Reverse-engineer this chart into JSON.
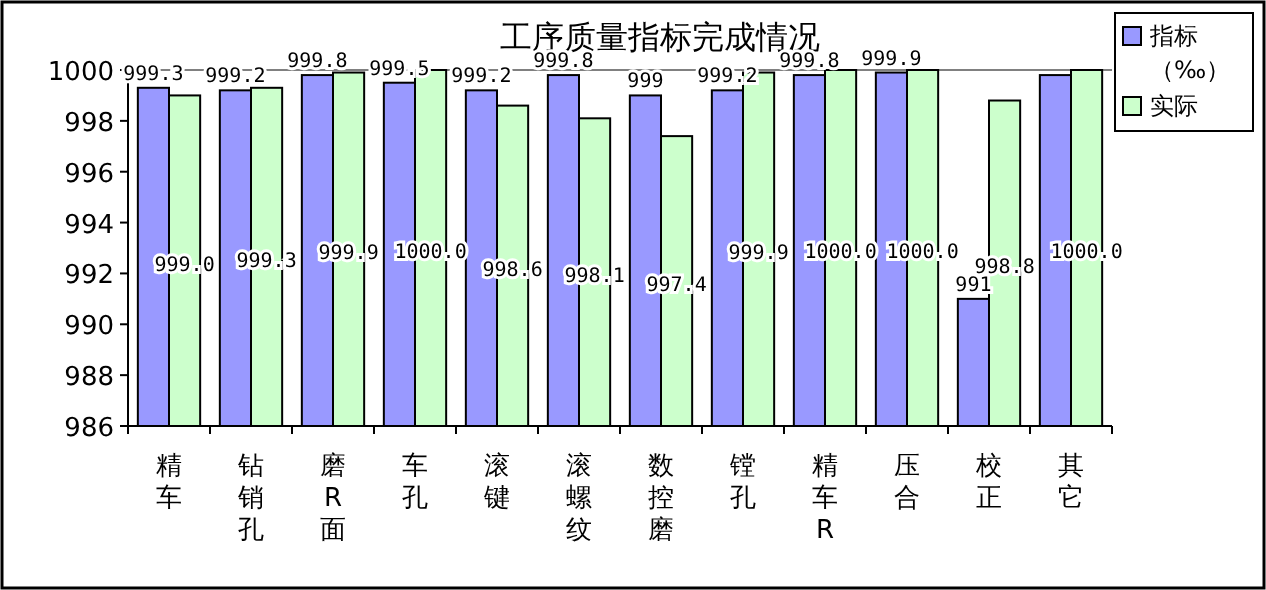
{
  "chart_data": {
    "type": "bar",
    "title": "工序质量指标完成情况",
    "categories": [
      "精车",
      "钻销孔",
      "磨R面",
      "车孔",
      "滚键",
      "滚螺纹",
      "数控磨",
      "镗孔",
      "精车R",
      "压合",
      "校正",
      "其它"
    ],
    "series": [
      {
        "name": "指标（‰）",
        "color": "#9999ff",
        "values": [
          999.3,
          999.2,
          999.8,
          999.5,
          999.2,
          999.8,
          999,
          999.2,
          999.8,
          999.9,
          991,
          999.8
        ],
        "value_labels": [
          "999.3",
          "999.2",
          "999.8",
          "999.5",
          "999.2",
          "999.8",
          "999",
          "999.2",
          "999.8",
          "999.9",
          "991",
          null
        ]
      },
      {
        "name": "实际",
        "color": "#ccffcc",
        "values": [
          999.0,
          999.3,
          999.9,
          1000.0,
          998.6,
          998.1,
          997.4,
          999.9,
          1000.0,
          1000.0,
          998.8,
          1000.0
        ],
        "value_labels": [
          "999.0",
          "999.3",
          "999.9",
          "1000.0",
          "998.6",
          "998.1",
          "997.4",
          "999.9",
          "1000.0",
          "1000.0",
          "998.8",
          "1000.0"
        ]
      }
    ],
    "ylim": [
      986,
      1000
    ],
    "yticks": [
      986,
      988,
      990,
      992,
      994,
      996,
      998,
      1000
    ],
    "legend": "top right",
    "grid": false
  }
}
